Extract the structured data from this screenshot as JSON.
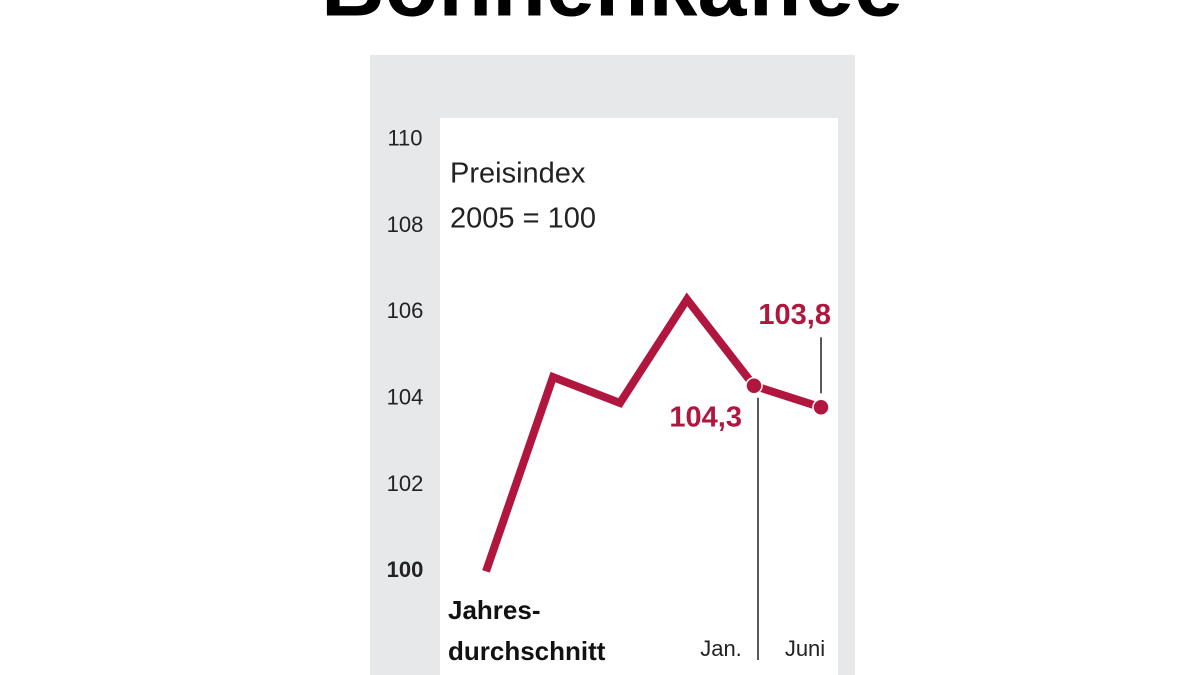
{
  "chart_data": {
    "type": "line",
    "title": "Bohnenkaffee",
    "annotations": [
      "Preisindex",
      "2005 = 100"
    ],
    "x_group_label": [
      "Jahres-",
      "durchschnitt"
    ],
    "categories": [
      null,
      null,
      null,
      null,
      "Jan.",
      "Juni"
    ],
    "series": [
      {
        "color": "#b0163e",
        "values": [
          100,
          104.5,
          103.9,
          106.3,
          104.3,
          103.8
        ],
        "value_labels": [
          null,
          null,
          null,
          null,
          "104,3",
          "103,8"
        ]
      }
    ],
    "ylim": [
      97.6,
      110.5
    ],
    "yticks": [
      100,
      102,
      104,
      106,
      108,
      110
    ]
  }
}
